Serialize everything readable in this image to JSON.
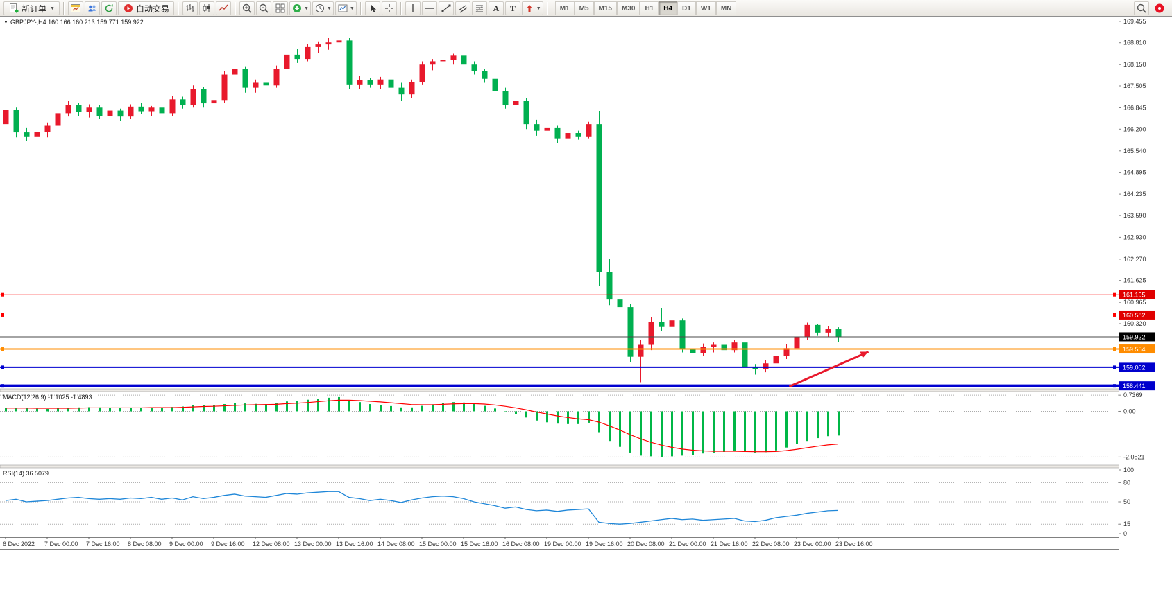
{
  "toolbar": {
    "new_order_label": "新订单",
    "auto_trading_label": "自动交易",
    "timeframes": [
      "M1",
      "M5",
      "M15",
      "M30",
      "H1",
      "H4",
      "D1",
      "W1",
      "MN"
    ],
    "active_timeframe": "H4",
    "icon_names": [
      "new-order-icon",
      "chart-window-icon",
      "profiles-icon",
      "refresh-icon",
      "auto-trading-icon",
      "bar-chart-icon",
      "candlestick-chart-icon",
      "line-chart-icon",
      "zoom-in-icon",
      "zoom-out-icon",
      "tile-windows-icon",
      "indicators-icon",
      "clock-icon",
      "template-chart-icon",
      "cursor-icon",
      "crosshair-icon",
      "vertical-line-icon",
      "horizontal-line-icon",
      "trendline-icon",
      "channel-icon",
      "fibonacci-icon",
      "text-icon",
      "label-icon",
      "arrow-shape-icon",
      "search-icon",
      "notification-icon"
    ]
  },
  "chart_header": {
    "title": "GBPJPY-,H4 160.166 160.213 159.771 159.922"
  },
  "indicators": {
    "macd_label": "MACD(12,26,9) -1.1025 -1.4893",
    "rsi_label": "RSI(14) 36.5079"
  },
  "price_axis": {
    "labels": [
      "169.455",
      "168.810",
      "168.150",
      "167.505",
      "166.845",
      "166.200",
      "165.540",
      "164.895",
      "164.235",
      "163.590",
      "162.930",
      "162.270",
      "161.625",
      "160.965",
      "160.320"
    ]
  },
  "hlines": [
    {
      "price": 161.195,
      "color": "#ff0000",
      "width": 1,
      "tag_bg": "#e00000",
      "handles": true
    },
    {
      "price": 160.582,
      "color": "#ff0000",
      "width": 1,
      "tag_bg": "#e00000",
      "handles": true
    },
    {
      "price": 159.922,
      "color": "#4a4a4a",
      "width": 1,
      "tag_bg": "#000000",
      "handles": false
    },
    {
      "price": 159.554,
      "color": "#ff8c00",
      "width": 2,
      "tag_bg": "#ff8c00",
      "handles": true
    },
    {
      "price": 159.002,
      "color": "#0000d0",
      "width": 2,
      "tag_bg": "#0000cd",
      "handles": true
    },
    {
      "price": 158.441,
      "color": "#0000d0",
      "width": 4,
      "tag_bg": "#0000cd",
      "handles": true
    }
  ],
  "time_axis": {
    "labels": [
      "6 Dec 2022",
      "7 Dec 00:00",
      "7 Dec 16:00",
      "8 Dec 08:00",
      "9 Dec 00:00",
      "9 Dec 16:00",
      "12 Dec 08:00",
      "13 Dec 00:00",
      "13 Dec 16:00",
      "14 Dec 08:00",
      "15 Dec 00:00",
      "15 Dec 16:00",
      "16 Dec 08:00",
      "19 Dec 00:00",
      "19 Dec 16:00",
      "20 Dec 08:00",
      "21 Dec 00:00",
      "21 Dec 16:00",
      "22 Dec 08:00",
      "23 Dec 00:00",
      "23 Dec 16:00"
    ]
  },
  "chart_data": [
    {
      "type": "candlestick",
      "symbol": "GBPJPY-",
      "timeframe": "H4",
      "ohlc_current": {
        "open": 160.166,
        "high": 160.213,
        "low": 159.771,
        "close": 159.922
      },
      "up_color": "#e8192c",
      "down_color": "#00b050",
      "ylim": [
        158.35,
        169.6
      ],
      "candles": [
        [
          166.35,
          166.95,
          166.2,
          166.78
        ],
        [
          166.78,
          166.85,
          165.95,
          166.1
        ],
        [
          166.1,
          166.25,
          165.85,
          165.98
        ],
        [
          165.98,
          166.22,
          165.85,
          166.12
        ],
        [
          166.12,
          166.4,
          165.95,
          166.3
        ],
        [
          166.3,
          166.8,
          166.2,
          166.68
        ],
        [
          166.68,
          167.05,
          166.58,
          166.92
        ],
        [
          166.92,
          167.0,
          166.6,
          166.72
        ],
        [
          166.72,
          166.95,
          166.55,
          166.85
        ],
        [
          166.85,
          166.92,
          166.5,
          166.6
        ],
        [
          166.6,
          166.85,
          166.48,
          166.76
        ],
        [
          166.76,
          166.82,
          166.45,
          166.58
        ],
        [
          166.58,
          166.95,
          166.5,
          166.88
        ],
        [
          166.88,
          166.98,
          166.65,
          166.74
        ],
        [
          166.74,
          166.9,
          166.6,
          166.85
        ],
        [
          166.85,
          166.92,
          166.55,
          166.68
        ],
        [
          166.68,
          167.2,
          166.6,
          167.1
        ],
        [
          167.1,
          167.18,
          166.82,
          166.92
        ],
        [
          166.92,
          167.52,
          166.85,
          167.42
        ],
        [
          167.42,
          167.48,
          166.85,
          166.98
        ],
        [
          166.98,
          167.15,
          166.8,
          167.08
        ],
        [
          167.08,
          167.95,
          167.0,
          167.85
        ],
        [
          167.85,
          168.15,
          167.6,
          168.02
        ],
        [
          168.02,
          168.1,
          167.3,
          167.45
        ],
        [
          167.45,
          167.7,
          167.3,
          167.6
        ],
        [
          167.6,
          167.75,
          167.4,
          167.52
        ],
        [
          167.52,
          168.12,
          167.45,
          168.02
        ],
        [
          168.02,
          168.55,
          167.95,
          168.45
        ],
        [
          168.45,
          168.62,
          168.2,
          168.32
        ],
        [
          168.32,
          168.78,
          168.25,
          168.68
        ],
        [
          168.68,
          168.85,
          168.5,
          168.76
        ],
        [
          168.76,
          168.95,
          168.6,
          168.82
        ],
        [
          168.82,
          169.02,
          168.65,
          168.88
        ],
        [
          168.88,
          168.95,
          167.42,
          167.55
        ],
        [
          167.55,
          167.82,
          167.4,
          167.68
        ],
        [
          167.68,
          167.75,
          167.45,
          167.55
        ],
        [
          167.55,
          167.78,
          167.42,
          167.7
        ],
        [
          167.7,
          167.76,
          167.32,
          167.45
        ],
        [
          167.45,
          167.6,
          167.05,
          167.25
        ],
        [
          167.25,
          167.7,
          167.15,
          167.62
        ],
        [
          167.62,
          168.25,
          167.55,
          168.15
        ],
        [
          168.15,
          168.32,
          167.98,
          168.25
        ],
        [
          168.25,
          168.58,
          168.1,
          168.3
        ],
        [
          168.3,
          168.48,
          168.15,
          168.42
        ],
        [
          168.42,
          168.5,
          168.05,
          168.15
        ],
        [
          168.15,
          168.25,
          167.85,
          167.95
        ],
        [
          167.95,
          168.02,
          167.6,
          167.72
        ],
        [
          167.72,
          167.8,
          167.25,
          167.35
        ],
        [
          167.35,
          167.45,
          166.82,
          166.92
        ],
        [
          166.92,
          167.12,
          166.8,
          167.05
        ],
        [
          167.05,
          167.15,
          166.2,
          166.35
        ],
        [
          166.35,
          166.48,
          166.0,
          166.15
        ],
        [
          166.15,
          166.32,
          165.95,
          166.25
        ],
        [
          166.25,
          166.3,
          165.78,
          165.92
        ],
        [
          165.92,
          166.18,
          165.85,
          166.08
        ],
        [
          166.08,
          166.15,
          165.88,
          165.98
        ],
        [
          165.98,
          166.42,
          165.92,
          166.35
        ],
        [
          166.35,
          166.75,
          161.45,
          161.88
        ],
        [
          161.88,
          162.28,
          160.88,
          161.05
        ],
        [
          161.05,
          161.15,
          160.55,
          160.82
        ],
        [
          160.82,
          160.92,
          159.15,
          159.32
        ],
        [
          159.32,
          159.82,
          158.55,
          159.68
        ],
        [
          159.68,
          160.52,
          159.52,
          160.38
        ],
        [
          160.38,
          160.78,
          160.1,
          160.22
        ],
        [
          160.22,
          160.6,
          160.08,
          160.42
        ],
        [
          160.42,
          160.48,
          159.45,
          159.55
        ],
        [
          159.55,
          159.65,
          159.28,
          159.42
        ],
        [
          159.42,
          159.72,
          159.35,
          159.62
        ],
        [
          159.62,
          159.75,
          159.45,
          159.68
        ],
        [
          159.68,
          159.72,
          159.42,
          159.52
        ],
        [
          159.52,
          159.82,
          159.45,
          159.75
        ],
        [
          159.75,
          159.8,
          158.92,
          159.02
        ],
        [
          159.02,
          159.1,
          158.78,
          158.95
        ],
        [
          158.95,
          159.22,
          158.85,
          159.12
        ],
        [
          159.12,
          159.45,
          159.0,
          159.35
        ],
        [
          159.35,
          159.7,
          159.25,
          159.58
        ],
        [
          159.58,
          160.02,
          159.48,
          159.92
        ],
        [
          159.92,
          160.35,
          159.82,
          160.28
        ],
        [
          160.28,
          160.32,
          159.95,
          160.05
        ],
        [
          160.05,
          160.25,
          159.92,
          160.166
        ],
        [
          160.166,
          160.213,
          159.771,
          159.922
        ]
      ],
      "arrow": {
        "from_bar": 75.3,
        "from_price": 158.42,
        "to_bar": 82.9,
        "to_price": 159.47,
        "color": "#e8192c"
      }
    },
    {
      "type": "bar",
      "name": "MACD(12,26,9)",
      "macd_value": -1.1025,
      "signal_value": -1.4893,
      "ylim": [
        -2.45,
        0.9
      ],
      "axis_labels": [
        "0.7369",
        "0.00",
        "-2.0821"
      ],
      "bar_color": "#00b746",
      "signal_color": "#ff0000",
      "values": [
        0.15,
        0.17,
        0.14,
        0.12,
        0.11,
        0.13,
        0.16,
        0.18,
        0.19,
        0.18,
        0.17,
        0.16,
        0.17,
        0.17,
        0.18,
        0.17,
        0.2,
        0.22,
        0.27,
        0.28,
        0.27,
        0.33,
        0.38,
        0.36,
        0.34,
        0.33,
        0.38,
        0.45,
        0.48,
        0.53,
        0.58,
        0.62,
        0.65,
        0.52,
        0.42,
        0.33,
        0.28,
        0.24,
        0.18,
        0.18,
        0.25,
        0.32,
        0.38,
        0.42,
        0.4,
        0.33,
        0.25,
        0.13,
        -0.02,
        -0.12,
        -0.28,
        -0.42,
        -0.5,
        -0.56,
        -0.58,
        -0.58,
        -0.52,
        -0.95,
        -1.35,
        -1.62,
        -1.88,
        -2.02,
        -2.05,
        -2.08,
        -2.05,
        -2.02,
        -1.98,
        -1.92,
        -1.88,
        -1.85,
        -1.82,
        -1.85,
        -1.88,
        -1.86,
        -1.78,
        -1.65,
        -1.5,
        -1.35,
        -1.22,
        -1.13,
        -1.1025
      ],
      "signal": [
        0.15,
        0.15,
        0.15,
        0.14,
        0.14,
        0.14,
        0.14,
        0.15,
        0.16,
        0.16,
        0.16,
        0.16,
        0.16,
        0.16,
        0.17,
        0.17,
        0.17,
        0.18,
        0.2,
        0.22,
        0.23,
        0.25,
        0.27,
        0.29,
        0.3,
        0.31,
        0.32,
        0.35,
        0.37,
        0.4,
        0.44,
        0.48,
        0.51,
        0.51,
        0.49,
        0.46,
        0.43,
        0.39,
        0.35,
        0.31,
        0.3,
        0.3,
        0.32,
        0.34,
        0.35,
        0.35,
        0.33,
        0.29,
        0.23,
        0.16,
        0.07,
        -0.03,
        -0.12,
        -0.21,
        -0.28,
        -0.34,
        -0.38,
        -0.49,
        -0.66,
        -0.85,
        -1.06,
        -1.25,
        -1.41,
        -1.54,
        -1.64,
        -1.72,
        -1.77,
        -1.8,
        -1.82,
        -1.82,
        -1.82,
        -1.83,
        -1.84,
        -1.84,
        -1.83,
        -1.79,
        -1.73,
        -1.66,
        -1.59,
        -1.53,
        -1.4893
      ]
    },
    {
      "type": "line",
      "name": "RSI(14)",
      "value": 36.5079,
      "ylim": [
        0,
        100
      ],
      "levels": [
        80,
        50,
        15
      ],
      "axis_labels": [
        "100",
        "80",
        "50",
        "15",
        "0"
      ],
      "line_color": "#1e86d8",
      "values": [
        52,
        54,
        50,
        51,
        52,
        54,
        56,
        57,
        55,
        54,
        55,
        54,
        56,
        55,
        57,
        54,
        56,
        53,
        58,
        55,
        57,
        60,
        62,
        59,
        58,
        57,
        60,
        63,
        62,
        64,
        65,
        66,
        66,
        57,
        55,
        52,
        54,
        52,
        49,
        53,
        56,
        58,
        59,
        58,
        55,
        50,
        47,
        44,
        40,
        42,
        38,
        36,
        37,
        35,
        37,
        38,
        39,
        18,
        16,
        15,
        16,
        18,
        20,
        22,
        24,
        22,
        23,
        21,
        22,
        23,
        24,
        20,
        19,
        21,
        25,
        27,
        29,
        32,
        34,
        36,
        36.5079
      ]
    }
  ]
}
